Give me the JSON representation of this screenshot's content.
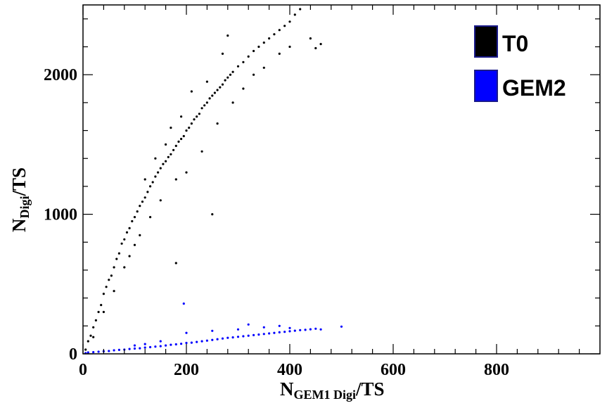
{
  "chart_data": {
    "type": "scatter",
    "title": "",
    "xlabel": {
      "main": "N",
      "sub": "GEM1 Digi",
      "tail": "/TS"
    },
    "ylabel": {
      "main": "N",
      "sub": "Digi",
      "tail": "/TS"
    },
    "xlim": [
      0,
      1000
    ],
    "ylim": [
      0,
      2500
    ],
    "x_ticks": [
      {
        "value": 0,
        "label": "0"
      },
      {
        "value": 200,
        "label": "200"
      },
      {
        "value": 400,
        "label": "400"
      },
      {
        "value": 600,
        "label": "600"
      },
      {
        "value": 800,
        "label": "800"
      }
    ],
    "y_ticks": [
      {
        "value": 0,
        "label": "0"
      },
      {
        "value": 1000,
        "label": "1000"
      },
      {
        "value": 2000,
        "label": "2000"
      }
    ],
    "grid": false,
    "legend_placement": "top-right",
    "series": [
      {
        "name": "T0",
        "color": "#000000",
        "points": [
          [
            5,
            30
          ],
          [
            10,
            90
          ],
          [
            15,
            130
          ],
          [
            20,
            190
          ],
          [
            25,
            240
          ],
          [
            30,
            300
          ],
          [
            35,
            350
          ],
          [
            40,
            430
          ],
          [
            45,
            480
          ],
          [
            50,
            530
          ],
          [
            55,
            560
          ],
          [
            60,
            620
          ],
          [
            65,
            680
          ],
          [
            70,
            720
          ],
          [
            75,
            790
          ],
          [
            80,
            820
          ],
          [
            85,
            870
          ],
          [
            90,
            900
          ],
          [
            95,
            950
          ],
          [
            100,
            980
          ],
          [
            105,
            1020
          ],
          [
            110,
            1060
          ],
          [
            115,
            1090
          ],
          [
            120,
            1120
          ],
          [
            125,
            1160
          ],
          [
            130,
            1200
          ],
          [
            135,
            1230
          ],
          [
            140,
            1270
          ],
          [
            145,
            1300
          ],
          [
            150,
            1330
          ],
          [
            155,
            1360
          ],
          [
            160,
            1380
          ],
          [
            165,
            1410
          ],
          [
            170,
            1430
          ],
          [
            175,
            1460
          ],
          [
            180,
            1490
          ],
          [
            185,
            1520
          ],
          [
            190,
            1540
          ],
          [
            195,
            1560
          ],
          [
            200,
            1600
          ],
          [
            205,
            1620
          ],
          [
            210,
            1650
          ],
          [
            215,
            1680
          ],
          [
            220,
            1700
          ],
          [
            225,
            1720
          ],
          [
            230,
            1760
          ],
          [
            235,
            1780
          ],
          [
            240,
            1800
          ],
          [
            245,
            1830
          ],
          [
            250,
            1850
          ],
          [
            255,
            1870
          ],
          [
            260,
            1890
          ],
          [
            265,
            1910
          ],
          [
            270,
            1930
          ],
          [
            275,
            1960
          ],
          [
            280,
            1980
          ],
          [
            285,
            2000
          ],
          [
            290,
            2020
          ],
          [
            300,
            2060
          ],
          [
            310,
            2090
          ],
          [
            320,
            2130
          ],
          [
            330,
            2170
          ],
          [
            340,
            2200
          ],
          [
            350,
            2230
          ],
          [
            360,
            2260
          ],
          [
            370,
            2290
          ],
          [
            380,
            2320
          ],
          [
            390,
            2350
          ],
          [
            400,
            2380
          ],
          [
            410,
            2430
          ],
          [
            420,
            2470
          ],
          [
            440,
            2260
          ],
          [
            450,
            2190
          ],
          [
            460,
            2220
          ],
          [
            130,
            980
          ],
          [
            120,
            1250
          ],
          [
            150,
            1100
          ],
          [
            160,
            1500
          ],
          [
            180,
            1250
          ],
          [
            200,
            1300
          ],
          [
            230,
            1450
          ],
          [
            260,
            1650
          ],
          [
            290,
            1800
          ],
          [
            310,
            1900
          ],
          [
            80,
            620
          ],
          [
            100,
            780
          ],
          [
            60,
            450
          ],
          [
            40,
            300
          ],
          [
            20,
            120
          ],
          [
            170,
            1620
          ],
          [
            190,
            1700
          ],
          [
            210,
            1880
          ],
          [
            240,
            1950
          ],
          [
            270,
            2150
          ],
          [
            280,
            2280
          ],
          [
            330,
            2000
          ],
          [
            350,
            2050
          ],
          [
            380,
            2150
          ],
          [
            400,
            2200
          ],
          [
            250,
            1000
          ],
          [
            180,
            650
          ],
          [
            140,
            1400
          ],
          [
            110,
            850
          ],
          [
            90,
            700
          ]
        ]
      },
      {
        "name": "GEM2",
        "color": "#0000ff",
        "points": [
          [
            5,
            5
          ],
          [
            10,
            10
          ],
          [
            20,
            12
          ],
          [
            30,
            15
          ],
          [
            40,
            18
          ],
          [
            50,
            20
          ],
          [
            60,
            25
          ],
          [
            70,
            28
          ],
          [
            80,
            30
          ],
          [
            90,
            35
          ],
          [
            100,
            38
          ],
          [
            110,
            40
          ],
          [
            120,
            45
          ],
          [
            130,
            48
          ],
          [
            140,
            52
          ],
          [
            150,
            55
          ],
          [
            160,
            60
          ],
          [
            170,
            65
          ],
          [
            180,
            68
          ],
          [
            190,
            72
          ],
          [
            200,
            78
          ],
          [
            210,
            80
          ],
          [
            220,
            85
          ],
          [
            230,
            90
          ],
          [
            240,
            95
          ],
          [
            250,
            100
          ],
          [
            260,
            105
          ],
          [
            270,
            110
          ],
          [
            280,
            115
          ],
          [
            290,
            118
          ],
          [
            300,
            122
          ],
          [
            310,
            126
          ],
          [
            320,
            130
          ],
          [
            330,
            134
          ],
          [
            340,
            138
          ],
          [
            350,
            142
          ],
          [
            360,
            146
          ],
          [
            370,
            150
          ],
          [
            380,
            154
          ],
          [
            390,
            158
          ],
          [
            400,
            162
          ],
          [
            410,
            166
          ],
          [
            420,
            170
          ],
          [
            430,
            172
          ],
          [
            440,
            176
          ],
          [
            450,
            180
          ],
          [
            460,
            175
          ],
          [
            500,
            195
          ],
          [
            195,
            360
          ],
          [
            200,
            150
          ],
          [
            250,
            165
          ],
          [
            300,
            175
          ],
          [
            350,
            190
          ],
          [
            320,
            210
          ],
          [
            380,
            200
          ],
          [
            400,
            185
          ],
          [
            150,
            90
          ],
          [
            120,
            70
          ],
          [
            100,
            60
          ]
        ]
      }
    ]
  }
}
